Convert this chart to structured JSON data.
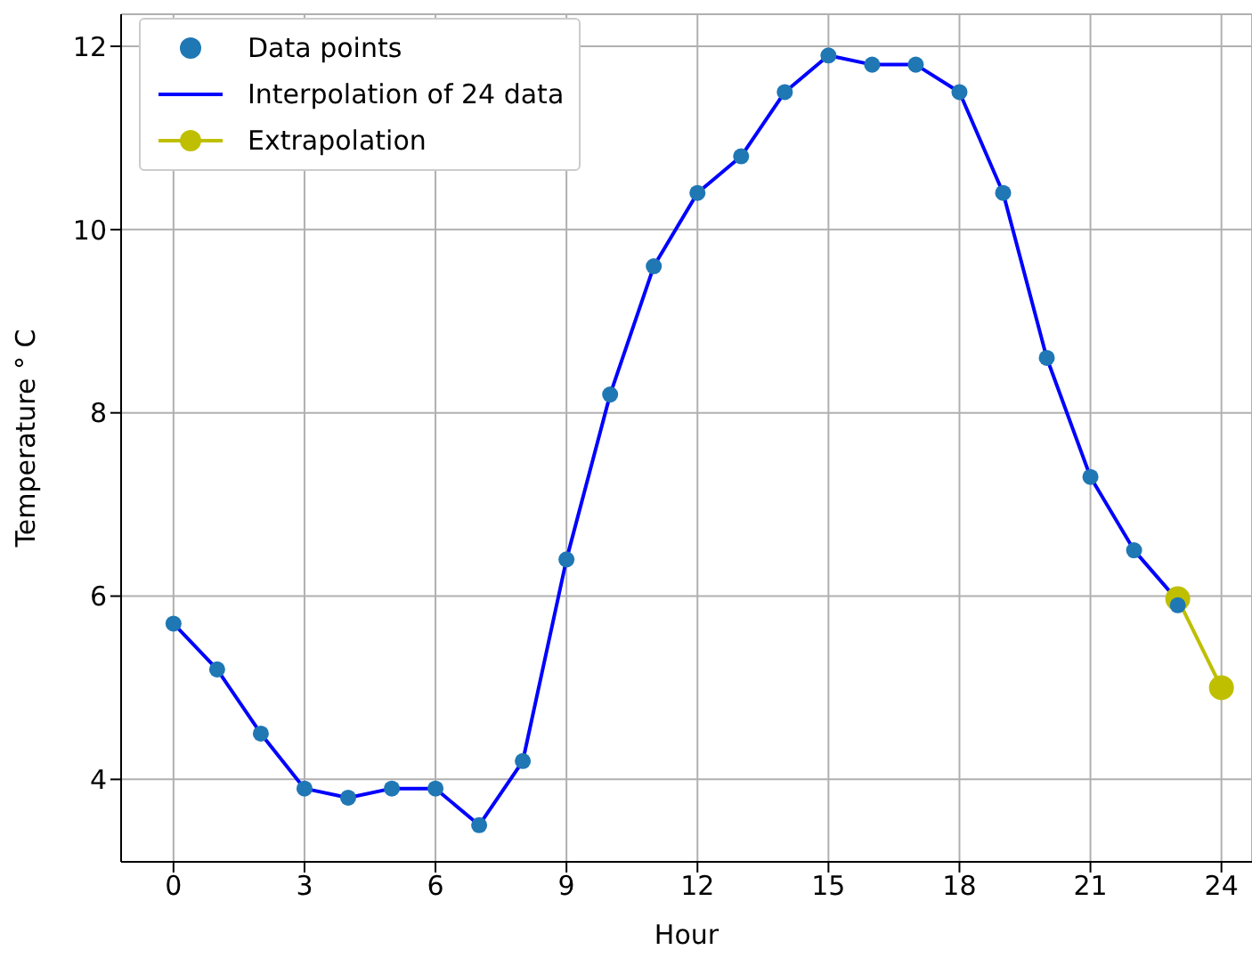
{
  "chart_data": {
    "type": "line",
    "xlabel": "Hour",
    "ylabel": "Temperature ° C",
    "xlim": [
      -1.2,
      24.7
    ],
    "xticks": [
      0,
      3,
      6,
      9,
      12,
      15,
      18,
      21,
      24
    ],
    "ylim": [
      3.1,
      12.35
    ],
    "yticks": [
      4,
      6,
      8,
      10,
      12
    ],
    "grid": true,
    "legend": "top left",
    "series": [
      {
        "name": "Data points",
        "type": "scatter",
        "color": "#1f77b4",
        "marker": "circle",
        "x": [
          0,
          1,
          2,
          3,
          4,
          5,
          6,
          7,
          8,
          9,
          10,
          11,
          12,
          13,
          14,
          15,
          16,
          17,
          18,
          19,
          20,
          21,
          22,
          23
        ],
        "values": [
          5.7,
          5.2,
          4.5,
          3.9,
          3.8,
          3.9,
          3.9,
          3.5,
          4.2,
          6.4,
          8.2,
          9.6,
          10.4,
          10.8,
          11.5,
          11.9,
          11.8,
          11.8,
          11.5,
          10.4,
          8.6,
          7.3,
          6.5,
          5.9
        ]
      },
      {
        "name": "Interpolation of 24 data",
        "color": "#0000ff",
        "marker": "none",
        "x": [
          0,
          1,
          2,
          3,
          4,
          5,
          6,
          7,
          8,
          9,
          10,
          11,
          12,
          13,
          14,
          15,
          16,
          17,
          18,
          19,
          20,
          21,
          22,
          23
        ],
        "values": [
          5.7,
          5.2,
          4.5,
          3.9,
          3.8,
          3.9,
          3.9,
          3.5,
          4.2,
          6.4,
          8.2,
          9.6,
          10.4,
          10.8,
          11.5,
          11.9,
          11.8,
          11.8,
          11.5,
          10.4,
          8.6,
          7.3,
          6.5,
          5.95
        ]
      },
      {
        "name": "Extrapolation",
        "color": "#bfbf00",
        "marker": "circle",
        "x": [
          23,
          24
        ],
        "values": [
          5.97,
          5.0
        ]
      }
    ]
  }
}
